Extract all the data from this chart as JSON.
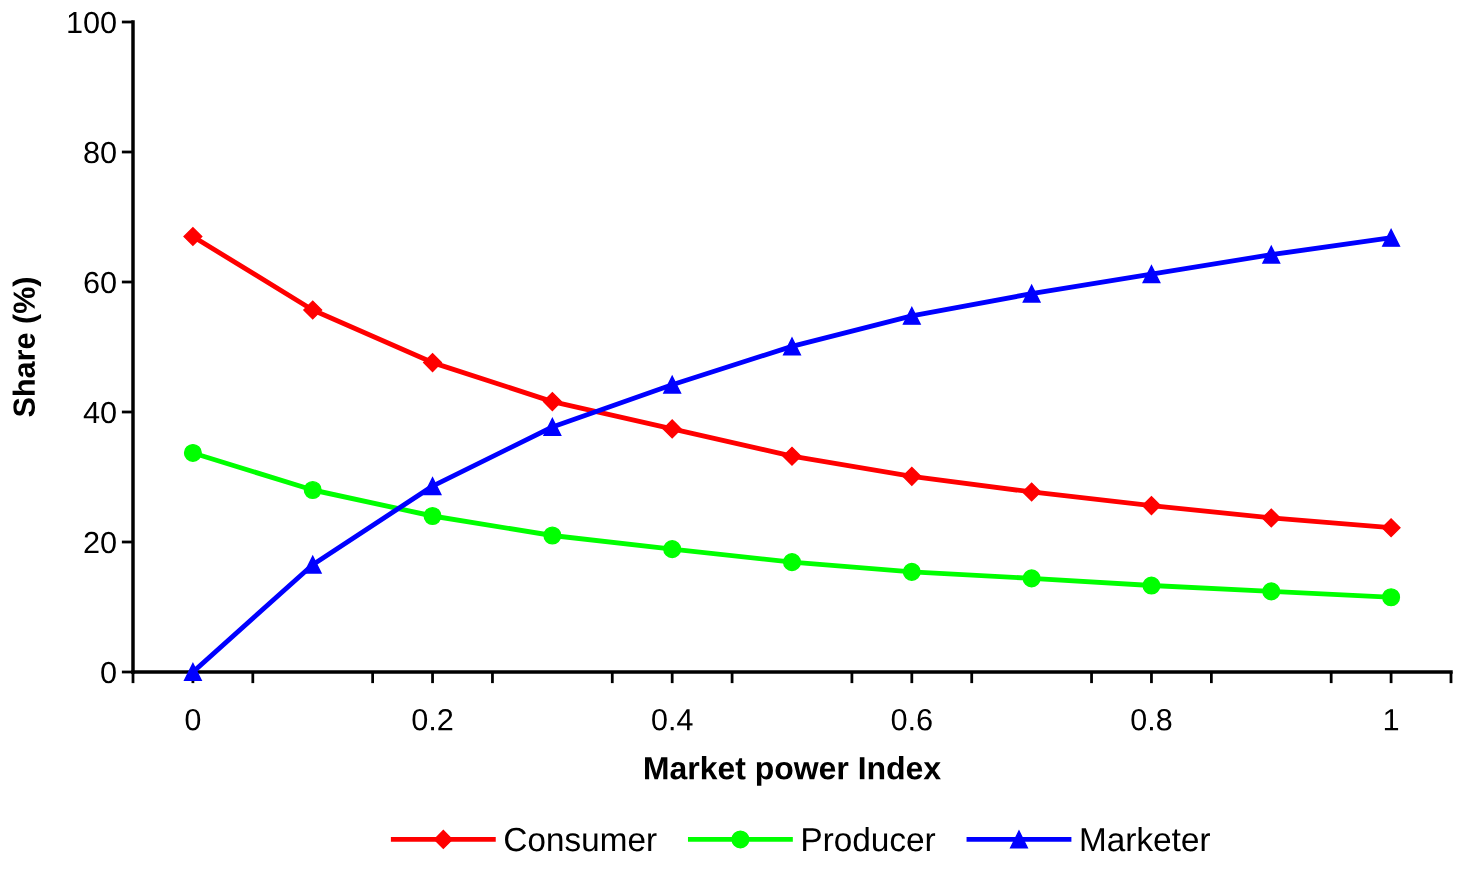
{
  "chart_data": {
    "type": "line",
    "xlabel": "Market power Index",
    "ylabel": "Share (%)",
    "x": [
      0,
      0.1,
      0.2,
      0.3,
      0.4,
      0.5,
      0.6,
      0.7,
      0.8,
      0.9,
      1
    ],
    "xlim": [
      -0.05,
      1.05
    ],
    "xticks": [
      0,
      0.2,
      0.4,
      0.6,
      0.8,
      1,
      {
        "value": -0.05,
        "label": null
      },
      {
        "value": 0.05,
        "label": null
      },
      {
        "value": 0.15,
        "label": null
      },
      {
        "value": 0.25,
        "label": null
      },
      {
        "value": 0.35,
        "label": null
      },
      {
        "value": 0.45,
        "label": null
      },
      {
        "value": 0.55,
        "label": null
      },
      {
        "value": 0.65,
        "label": null
      },
      {
        "value": 0.75,
        "label": null
      },
      {
        "value": 0.85,
        "label": null
      },
      {
        "value": 0.95,
        "label": null
      },
      {
        "value": 1.05,
        "label": null
      }
    ],
    "ylim": [
      0,
      100
    ],
    "yticks": [
      0,
      20,
      40,
      60,
      80,
      100
    ],
    "grid": false,
    "legend": "bottom",
    "line_style": "solid",
    "series": [
      {
        "name": "Consumer",
        "color": "#ff0000",
        "marker": "diamond",
        "values": [
          67,
          55.7,
          47.6,
          41.6,
          37.4,
          33.2,
          30.1,
          27.7,
          25.6,
          23.7,
          22.2
        ]
      },
      {
        "name": "Producer",
        "color": "#00ff00",
        "marker": "circle",
        "values": [
          33.7,
          28,
          24,
          21,
          18.9,
          16.9,
          15.4,
          14.4,
          13.3,
          12.4,
          11.5
        ]
      },
      {
        "name": "Marketer",
        "color": "#0000ff",
        "marker": "triangle",
        "values": [
          0,
          16.5,
          28.6,
          37.7,
          44.2,
          50.1,
          54.8,
          58.2,
          61.2,
          64.2,
          66.8
        ]
      }
    ]
  }
}
